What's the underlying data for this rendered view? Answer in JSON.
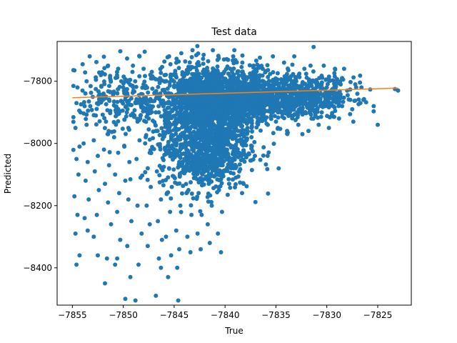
{
  "chart_data": {
    "type": "scatter",
    "title": "Test data",
    "xlabel": "True",
    "ylabel": "Predicted",
    "xlim": [
      -7856.5,
      -7821.7
    ],
    "ylim": [
      -8520,
      -7672
    ],
    "x_ticks": [
      -7855,
      -7850,
      -7845,
      -7840,
      -7835,
      -7830,
      -7825
    ],
    "x_tick_labels": [
      "−7855",
      "−7850",
      "−7845",
      "−7840",
      "−7835",
      "−7830",
      "−7825"
    ],
    "y_ticks": [
      -8400,
      -8200,
      -8000,
      -7800
    ],
    "y_tick_labels": [
      "−8400",
      "−8200",
      "−8000",
      "−7800"
    ],
    "grid": false,
    "legend": "none",
    "series": [
      {
        "kind": "points",
        "color": "#1f77b4",
        "points": [
          [
            -7854.8,
            -7765
          ],
          [
            -7854.5,
            -7820
          ],
          [
            -7854.6,
            -7870
          ],
          [
            -7854.2,
            -7900
          ],
          [
            -7854.7,
            -7950
          ],
          [
            -7854.3,
            -8010
          ],
          [
            -7854.6,
            -8050
          ],
          [
            -7854.4,
            -8100
          ],
          [
            -7854.8,
            -8170
          ],
          [
            -7854.5,
            -8230
          ],
          [
            -7854.7,
            -8290
          ],
          [
            -7854.3,
            -8360
          ],
          [
            -7854.6,
            -8390
          ],
          [
            -7854.0,
            -7830
          ],
          [
            -7853.8,
            -7880
          ],
          [
            -7853.6,
            -7940
          ],
          [
            -7853.9,
            -8000
          ],
          [
            -7853.5,
            -8060
          ],
          [
            -7853.7,
            -8120
          ],
          [
            -7853.4,
            -8180
          ],
          [
            -7853.8,
            -8240
          ],
          [
            -7853.5,
            -8280
          ],
          [
            -7853.3,
            -7720
          ],
          [
            -7853.6,
            -7800
          ],
          [
            -7853.0,
            -7850
          ],
          [
            -7852.7,
            -7910
          ],
          [
            -7852.9,
            -7990
          ],
          [
            -7852.5,
            -8040
          ],
          [
            -7852.8,
            -8090
          ],
          [
            -7852.4,
            -8150
          ],
          [
            -7852.6,
            -8230
          ],
          [
            -7852.9,
            -8300
          ],
          [
            -7852.5,
            -8360
          ],
          [
            -7852.2,
            -7780
          ],
          [
            -7852.7,
            -7825
          ],
          [
            -7852.0,
            -7860
          ],
          [
            -7851.7,
            -7930
          ],
          [
            -7851.5,
            -7970
          ],
          [
            -7851.9,
            -8020
          ],
          [
            -7851.4,
            -8070
          ],
          [
            -7851.8,
            -8130
          ],
          [
            -7851.5,
            -8190
          ],
          [
            -7851.2,
            -8260
          ],
          [
            -7851.6,
            -8370
          ],
          [
            -7851.8,
            -8450
          ],
          [
            -7851.3,
            -7790
          ],
          [
            -7851.5,
            -7750
          ],
          [
            -7851.0,
            -7840
          ],
          [
            -7850.7,
            -7900
          ],
          [
            -7850.9,
            -7980
          ],
          [
            -7850.5,
            -8030
          ],
          [
            -7850.8,
            -8100
          ],
          [
            -7850.4,
            -8160
          ],
          [
            -7850.6,
            -8220
          ],
          [
            -7850.3,
            -8310
          ],
          [
            -7850.8,
            -8390
          ],
          [
            -7850.6,
            -8370
          ],
          [
            -7850.2,
            -7800
          ],
          [
            -7850.5,
            -7760
          ],
          [
            -7850.0,
            -7820
          ],
          [
            -7849.7,
            -7880
          ],
          [
            -7849.5,
            -7950
          ],
          [
            -7849.9,
            -8010
          ],
          [
            -7849.4,
            -8060
          ],
          [
            -7849.8,
            -8120
          ],
          [
            -7849.5,
            -8180
          ],
          [
            -7849.2,
            -8250
          ],
          [
            -7849.6,
            -8330
          ],
          [
            -7849.3,
            -8430
          ],
          [
            -7849.8,
            -8500
          ],
          [
            -7849.1,
            -7770
          ],
          [
            -7849.0,
            -7830
          ],
          [
            -7848.8,
            -7870
          ],
          [
            -7848.6,
            -7930
          ],
          [
            -7848.4,
            -7990
          ],
          [
            -7848.7,
            -8050
          ],
          [
            -7848.3,
            -8110
          ],
          [
            -7848.6,
            -8200
          ],
          [
            -7848.2,
            -8290
          ],
          [
            -7848.5,
            -8390
          ],
          [
            -7848.8,
            -8505
          ],
          [
            -7848.4,
            -7720
          ],
          [
            -7848.0,
            -7760
          ],
          [
            -7848.0,
            -7810
          ],
          [
            -7847.7,
            -7860
          ],
          [
            -7847.5,
            -7920
          ],
          [
            -7847.8,
            -7980
          ],
          [
            -7847.4,
            -8030
          ],
          [
            -7847.6,
            -8080
          ],
          [
            -7847.3,
            -8140
          ],
          [
            -7847.7,
            -8200
          ],
          [
            -7847.4,
            -8260
          ],
          [
            -7847.6,
            -8330
          ],
          [
            -7847.9,
            -7705
          ],
          [
            -7847.2,
            -7770
          ],
          [
            -7847.0,
            -7790
          ],
          [
            -7846.7,
            -7850
          ],
          [
            -7846.5,
            -7900
          ],
          [
            -7846.8,
            -7960
          ],
          [
            -7846.4,
            -8010
          ],
          [
            -7846.7,
            -8090
          ],
          [
            -7846.3,
            -8180
          ],
          [
            -7846.6,
            -8250
          ],
          [
            -7846.2,
            -8310
          ],
          [
            -7846.5,
            -8370
          ],
          [
            -7846.8,
            -8490
          ],
          [
            -7846.3,
            -8400
          ],
          [
            -7846.0,
            -7800
          ],
          [
            -7845.8,
            -7870
          ],
          [
            -7845.6,
            -7940
          ],
          [
            -7845.9,
            -8020
          ],
          [
            -7845.5,
            -8080
          ],
          [
            -7845.7,
            -8160
          ],
          [
            -7845.4,
            -8220
          ],
          [
            -7845.8,
            -8300
          ],
          [
            -7845.3,
            -8360
          ],
          [
            -7845.6,
            -8430
          ],
          [
            -7845.5,
            -7720
          ],
          [
            -7845.0,
            -7780
          ],
          [
            -7844.8,
            -7860
          ],
          [
            -7844.6,
            -7930
          ],
          [
            -7844.9,
            -8000
          ],
          [
            -7844.5,
            -8060
          ],
          [
            -7844.7,
            -8130
          ],
          [
            -7844.4,
            -8200
          ],
          [
            -7844.8,
            -8280
          ],
          [
            -7844.5,
            -8340
          ],
          [
            -7844.7,
            -8400
          ],
          [
            -7844.6,
            -8505
          ],
          [
            -7844.3,
            -7710
          ],
          [
            -7844.0,
            -7800
          ],
          [
            -7843.7,
            -7880
          ],
          [
            -7843.5,
            -7950
          ],
          [
            -7843.8,
            -8020
          ],
          [
            -7843.4,
            -8080
          ],
          [
            -7843.6,
            -8150
          ],
          [
            -7843.3,
            -8230
          ],
          [
            -7843.7,
            -8300
          ],
          [
            -7843.4,
            -8350
          ],
          [
            -7843.2,
            -7700
          ],
          [
            -7843.0,
            -7790
          ],
          [
            -7842.7,
            -7870
          ],
          [
            -7842.5,
            -7940
          ],
          [
            -7842.8,
            -8010
          ],
          [
            -7842.4,
            -8080
          ],
          [
            -7842.6,
            -8160
          ],
          [
            -7842.3,
            -8230
          ],
          [
            -7842.7,
            -8290
          ],
          [
            -7842.4,
            -8340
          ],
          [
            -7842.1,
            -7715
          ],
          [
            -7842.0,
            -7780
          ],
          [
            -7841.7,
            -7860
          ],
          [
            -7841.5,
            -7920
          ],
          [
            -7841.8,
            -7990
          ],
          [
            -7841.4,
            -8060
          ],
          [
            -7841.6,
            -8130
          ],
          [
            -7841.3,
            -8200
          ],
          [
            -7841.7,
            -8260
          ],
          [
            -7841.5,
            -8320
          ],
          [
            -7841.2,
            -7700
          ],
          [
            -7841.0,
            -7790
          ],
          [
            -7840.7,
            -7870
          ],
          [
            -7840.5,
            -7940
          ],
          [
            -7840.8,
            -8000
          ],
          [
            -7840.4,
            -8070
          ],
          [
            -7840.6,
            -8150
          ],
          [
            -7840.3,
            -8220
          ],
          [
            -7840.7,
            -8290
          ],
          [
            -7840.4,
            -8350
          ],
          [
            -7840.1,
            -7730
          ],
          [
            -7840.0,
            -7800
          ],
          [
            -7839.7,
            -7880
          ],
          [
            -7839.5,
            -7950
          ],
          [
            -7839.8,
            -8020
          ],
          [
            -7839.4,
            -8080
          ],
          [
            -7839.6,
            -8130
          ],
          [
            -7839.2,
            -7720
          ],
          [
            -7839.5,
            -7760
          ],
          [
            -7839.0,
            -7810
          ],
          [
            -7838.7,
            -7870
          ],
          [
            -7838.5,
            -7930
          ],
          [
            -7838.8,
            -7990
          ],
          [
            -7838.4,
            -8040
          ],
          [
            -7838.6,
            -8090
          ],
          [
            -7838.3,
            -7740
          ],
          [
            -7838.0,
            -7820
          ],
          [
            -7837.7,
            -7860
          ],
          [
            -7837.5,
            -7900
          ],
          [
            -7837.8,
            -7950
          ],
          [
            -7837.4,
            -7980
          ],
          [
            -7837.2,
            -7750
          ],
          [
            -7837.0,
            -7800
          ],
          [
            -7836.7,
            -7850
          ],
          [
            -7836.5,
            -7890
          ],
          [
            -7836.8,
            -7930
          ],
          [
            -7836.3,
            -7760
          ],
          [
            -7836.0,
            -7810
          ],
          [
            -7835.7,
            -7860
          ],
          [
            -7835.5,
            -7900
          ],
          [
            -7835.8,
            -7940
          ],
          [
            -7835.3,
            -7720
          ],
          [
            -7835.0,
            -7800
          ],
          [
            -7834.7,
            -7850
          ],
          [
            -7834.5,
            -7900
          ],
          [
            -7834.8,
            -7950
          ],
          [
            -7834.2,
            -7740
          ],
          [
            -7834.0,
            -7810
          ],
          [
            -7833.7,
            -7860
          ],
          [
            -7833.5,
            -7910
          ],
          [
            -7833.9,
            -7960
          ],
          [
            -7833.2,
            -7720
          ],
          [
            -7833.0,
            -7800
          ],
          [
            -7832.7,
            -7860
          ],
          [
            -7832.5,
            -7900
          ],
          [
            -7832.8,
            -7940
          ],
          [
            -7832.2,
            -7760
          ],
          [
            -7832.4,
            -7970
          ],
          [
            -7832.0,
            -7820
          ],
          [
            -7831.7,
            -7870
          ],
          [
            -7831.5,
            -7920
          ],
          [
            -7831.8,
            -7960
          ],
          [
            -7831.3,
            -7690
          ],
          [
            -7831.6,
            -7750
          ],
          [
            -7831.0,
            -7810
          ],
          [
            -7830.7,
            -7860
          ],
          [
            -7830.5,
            -7900
          ],
          [
            -7830.8,
            -7940
          ],
          [
            -7830.3,
            -7750
          ],
          [
            -7830.0,
            -7820
          ],
          [
            -7829.7,
            -7870
          ],
          [
            -7829.5,
            -7910
          ],
          [
            -7829.8,
            -7950
          ],
          [
            -7829.2,
            -7760
          ],
          [
            -7829.0,
            -7800
          ],
          [
            -7828.7,
            -7850
          ],
          [
            -7828.5,
            -7880
          ],
          [
            -7828.8,
            -7920
          ],
          [
            -7828.3,
            -7760
          ],
          [
            -7828.5,
            -7790
          ],
          [
            -7828.0,
            -7830
          ],
          [
            -7827.7,
            -7860
          ],
          [
            -7827.5,
            -7890
          ],
          [
            -7827.2,
            -7810
          ],
          [
            -7827.4,
            -7930
          ],
          [
            -7827.0,
            -7840
          ],
          [
            -7826.7,
            -7870
          ],
          [
            -7826.4,
            -7860
          ],
          [
            -7826.6,
            -7820
          ],
          [
            -7825.4,
            -7880
          ],
          [
            -7825.0,
            -7940
          ],
          [
            -7823.3,
            -7825
          ],
          [
            -7823.0,
            -7830
          ]
        ],
        "clusters": [
          {
            "cx": -7841.5,
            "cy": -7860,
            "sx": 2.8,
            "sy": 55,
            "n": 1400
          },
          {
            "cx": -7842.0,
            "cy": -8010,
            "sx": 2.2,
            "sy": 70,
            "n": 900
          },
          {
            "cx": -7835.5,
            "cy": -7850,
            "sx": 2.6,
            "sy": 38,
            "n": 700
          },
          {
            "cx": -7830.5,
            "cy": -7845,
            "sx": 1.6,
            "sy": 30,
            "n": 220
          },
          {
            "cx": -7850.5,
            "cy": -7860,
            "sx": 2.0,
            "sy": 60,
            "n": 180
          }
        ]
      },
      {
        "kind": "line",
        "color": "#ff7f0e",
        "x": [
          -7855,
          -7823
        ],
        "y": [
          -7853,
          -7822
        ]
      }
    ]
  }
}
